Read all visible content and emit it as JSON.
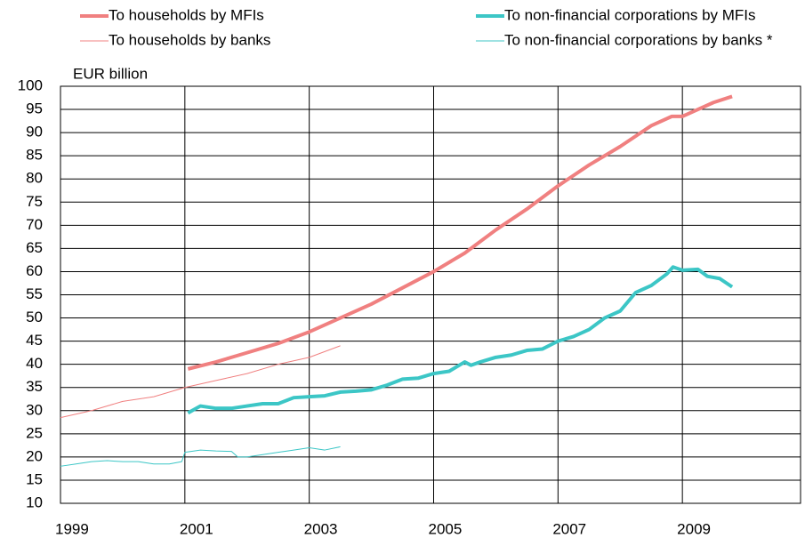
{
  "chart_data": {
    "type": "line",
    "y_label": "EUR billion",
    "xlim": [
      1999,
      2010.9
    ],
    "xticks": [
      1999,
      2001,
      2003,
      2005,
      2007,
      2009
    ],
    "ylim": [
      10,
      100
    ],
    "yticks": [
      10,
      15,
      20,
      25,
      30,
      35,
      40,
      45,
      50,
      55,
      60,
      65,
      70,
      75,
      80,
      85,
      90,
      95,
      100
    ],
    "grid": true,
    "series": [
      {
        "name": "To households by MFIs",
        "color": "#f08080",
        "line_width": 4,
        "x": [
          2001.05,
          2001.5,
          2002.0,
          2002.5,
          2003.0,
          2003.5,
          2004.0,
          2004.5,
          2005.0,
          2005.5,
          2006.0,
          2006.5,
          2007.0,
          2007.5,
          2008.0,
          2008.5,
          2008.83,
          2009.0,
          2009.25,
          2009.5,
          2009.8
        ],
        "values": [
          39,
          40.5,
          42.5,
          44.5,
          47,
          50,
          53,
          56.5,
          60,
          64,
          69,
          73.5,
          78.5,
          83,
          87,
          91.5,
          93.5,
          93.5,
          95,
          96.5,
          97.8
        ]
      },
      {
        "name": "To non-financial corporations by MFIs",
        "color": "#3cc6c6",
        "line_width": 4,
        "x": [
          2001.05,
          2001.25,
          2001.5,
          2001.75,
          2002.0,
          2002.25,
          2002.5,
          2002.75,
          2003.0,
          2003.25,
          2003.5,
          2003.75,
          2004.0,
          2004.25,
          2004.5,
          2004.75,
          2005.0,
          2005.25,
          2005.5,
          2005.6,
          2005.75,
          2006.0,
          2006.25,
          2006.5,
          2006.75,
          2007.0,
          2007.25,
          2007.5,
          2007.75,
          2008.0,
          2008.25,
          2008.5,
          2008.75,
          2008.85,
          2009.0,
          2009.25,
          2009.4,
          2009.6,
          2009.8
        ],
        "values": [
          29.5,
          31,
          30.5,
          30.5,
          31,
          31.5,
          31.5,
          32.8,
          33,
          33.2,
          34,
          34.2,
          34.5,
          35.5,
          36.8,
          37,
          38,
          38.5,
          40.5,
          39.8,
          40.5,
          41.5,
          42,
          43,
          43.3,
          45,
          46,
          47.5,
          50,
          51.5,
          55.5,
          57,
          59.5,
          61,
          60.3,
          60.5,
          59,
          58.5,
          56.7
        ]
      },
      {
        "name": "To households by banks",
        "color": "#f08080",
        "line_width": 1,
        "x": [
          1999.0,
          1999.5,
          2000.0,
          2000.5,
          2001.0,
          2001.5,
          2002.0,
          2002.5,
          2003.0,
          2003.5
        ],
        "values": [
          28.5,
          30,
          32,
          33,
          35,
          36.5,
          38,
          40,
          41.5,
          44
        ]
      },
      {
        "name": "To non-financial corporations by banks *",
        "color": "#3cc6c6",
        "line_width": 1,
        "x": [
          1999.0,
          1999.25,
          1999.5,
          1999.75,
          2000.0,
          2000.25,
          2000.5,
          2000.75,
          2000.95,
          2001.0,
          2001.25,
          2001.5,
          2001.75,
          2001.85,
          2002.0,
          2002.25,
          2002.5,
          2002.75,
          2003.0,
          2003.25,
          2003.5
        ],
        "values": [
          18,
          18.5,
          19,
          19.2,
          19,
          19,
          18.5,
          18.5,
          19,
          21,
          21.5,
          21.3,
          21.2,
          20,
          20,
          20.5,
          21,
          21.5,
          22,
          21.5,
          22.2
        ]
      }
    ]
  }
}
